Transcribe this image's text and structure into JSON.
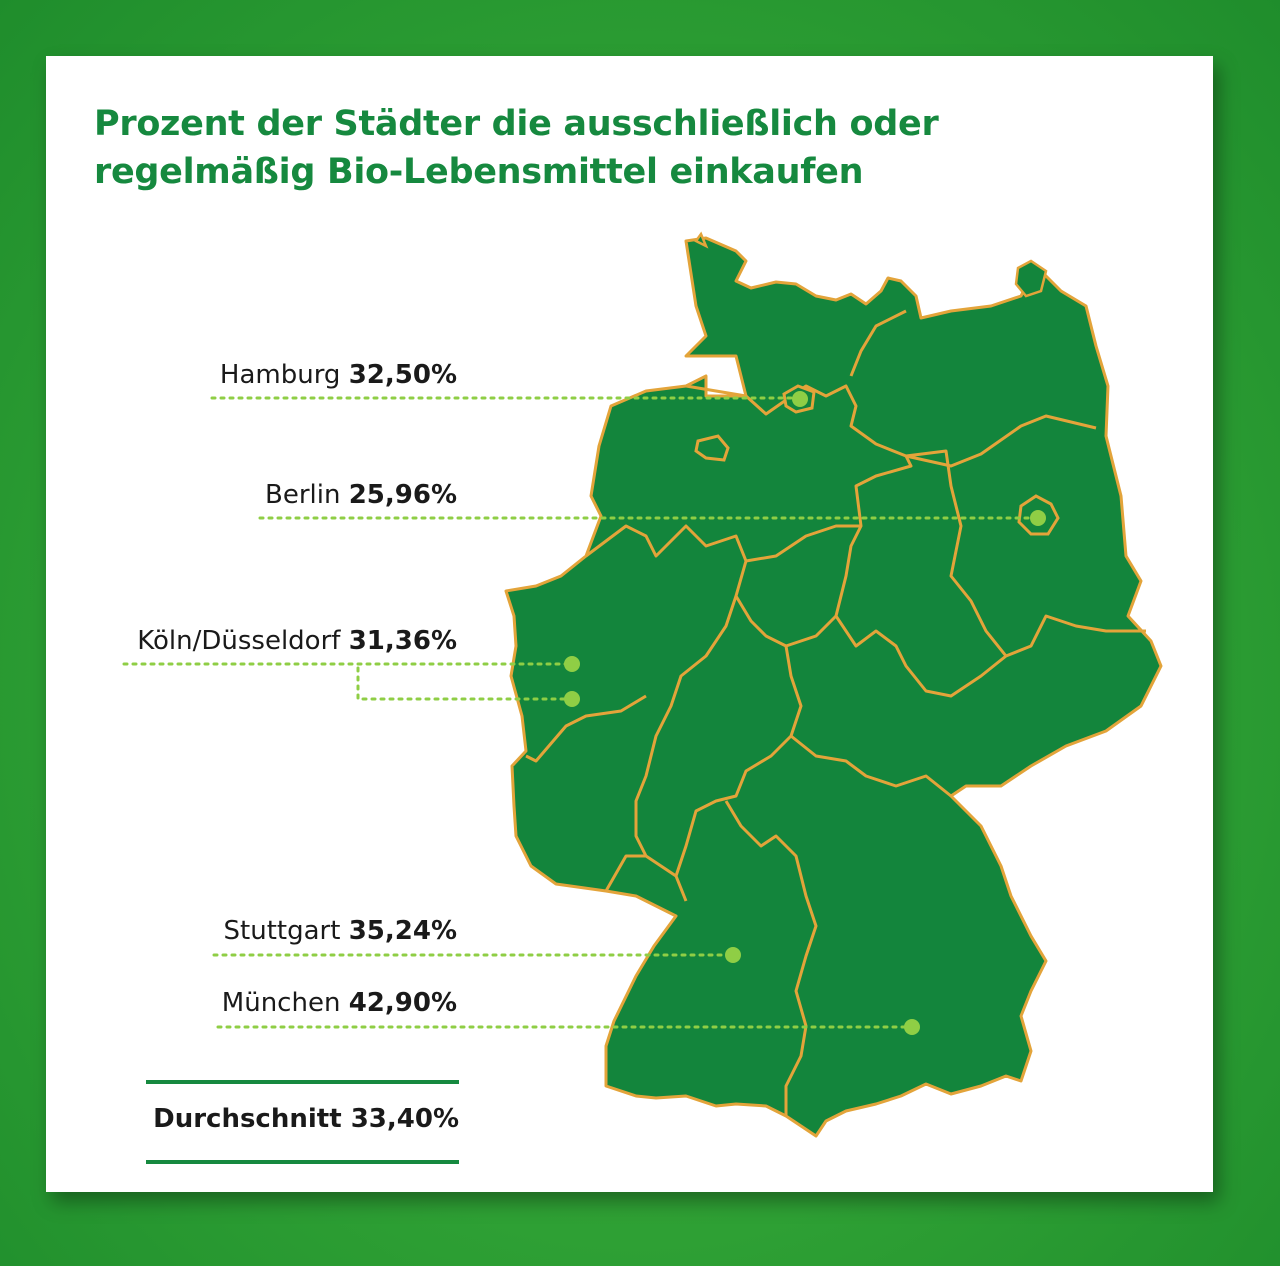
{
  "title": {
    "line1": "Prozent der Städter die ausschließlich oder",
    "line2": "regelmäßig Bio-Lebensmittel einkaufen"
  },
  "cities": [
    {
      "name": "Hamburg",
      "value": "32,50%"
    },
    {
      "name": "Berlin",
      "value": "25,96%"
    },
    {
      "name": "Köln/Düsseldorf",
      "value": "31,36%"
    },
    {
      "name": "Stuttgart",
      "value": "35,24%"
    },
    {
      "name": "München",
      "value": "42,90%"
    }
  ],
  "average": {
    "label": "Durchschnitt",
    "value": "33,40%"
  },
  "colors": {
    "map_fill": "#13853c",
    "border": "#e3a43a",
    "dot": "#8fce45",
    "title": "#16893f",
    "background": "#2ea034"
  }
}
